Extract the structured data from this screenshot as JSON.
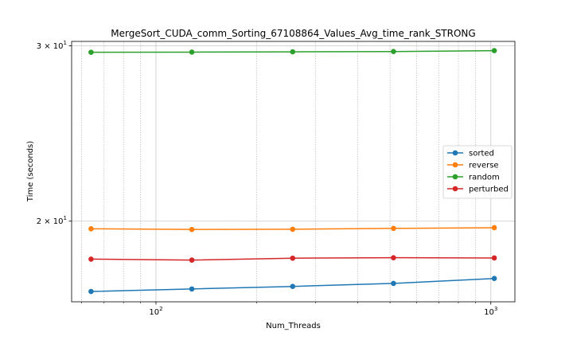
{
  "chart_data": {
    "type": "line",
    "title": "MergeSort_CUDA_comm_Sorting_67108864_Values_Avg_time_rank_STRONG",
    "xlabel": "Num_Threads",
    "ylabel": "Time (seconds)",
    "xscale": "log",
    "yscale": "log",
    "xlim": [
      56,
      1180
    ],
    "ylim": [
      16.6,
      30.3
    ],
    "xticks": [
      {
        "value": 100,
        "label": "10^2",
        "base": "10",
        "exp": "2"
      },
      {
        "value": 1000,
        "label": "10^3",
        "base": "10",
        "exp": "3"
      }
    ],
    "yticks": [
      {
        "value": 20,
        "label": "2×10^1",
        "mant": "2 × 10",
        "exp": "1"
      },
      {
        "value": 30,
        "label": "3×10^1",
        "mant": "3 × 10",
        "exp": "1"
      }
    ],
    "x": [
      64,
      128,
      256,
      512,
      1024
    ],
    "series": [
      {
        "name": "sorted",
        "color": "#1f77b4",
        "values": [
          17.0,
          17.1,
          17.2,
          17.32,
          17.52
        ]
      },
      {
        "name": "reverse",
        "color": "#ff7f0e",
        "values": [
          19.65,
          19.62,
          19.63,
          19.67,
          19.7
        ]
      },
      {
        "name": "random",
        "color": "#2ca02c",
        "values": [
          29.55,
          29.56,
          29.58,
          29.6,
          29.66
        ]
      },
      {
        "name": "perturbed",
        "color": "#d62728",
        "values": [
          18.32,
          18.28,
          18.36,
          18.38,
          18.37
        ]
      }
    ],
    "grid": true,
    "legend_position": "center-right"
  }
}
